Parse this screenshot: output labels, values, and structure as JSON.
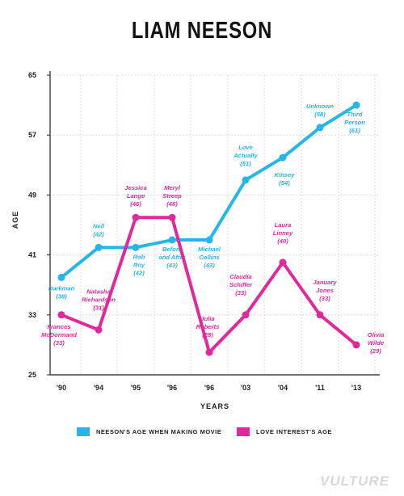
{
  "page": {
    "title": "LIAM NEESON",
    "brand": "VULTURE"
  },
  "colors": {
    "neeson": "#26b6e8",
    "love": "#e0299b",
    "grid": "#dcdcdc",
    "axis": "#222222"
  },
  "chart_data": {
    "type": "line",
    "title": "LIAM NEESON",
    "xlabel": "YEARS",
    "ylabel": "AGE",
    "categories": [
      "'90",
      "'94",
      "'95",
      "'96",
      "'96",
      "'03",
      "'04",
      "'11",
      "'13"
    ],
    "yticks": [
      25,
      33,
      41,
      49,
      57,
      65
    ],
    "ylim": [
      25,
      65
    ],
    "grid": true,
    "legend_position": "bottom",
    "series": [
      {
        "name": "NEESON'S AGE WHEN MAKING MOVIE",
        "color": "#26b6e8",
        "points": [
          {
            "x": 0,
            "y": 38,
            "label": [
              "Darkman",
              "(38)"
            ]
          },
          {
            "x": 1,
            "y": 42,
            "label": [
              "Nell",
              "(42)"
            ]
          },
          {
            "x": 2,
            "y": 42,
            "label": [
              "Rob",
              "Roy",
              "(42)"
            ]
          },
          {
            "x": 3,
            "y": 43,
            "label": [
              "Before",
              "and After",
              "(43)"
            ]
          },
          {
            "x": 4,
            "y": 43,
            "label": [
              "Michael",
              "Collins",
              "(43)"
            ]
          },
          {
            "x": 5,
            "y": 51,
            "label": [
              "Love",
              "Actually",
              "(51)"
            ]
          },
          {
            "x": 6,
            "y": 54,
            "label": [
              "Kinsey",
              "(54)"
            ]
          },
          {
            "x": 7,
            "y": 58,
            "label": [
              "Unknown",
              "(58)"
            ]
          },
          {
            "x": 8,
            "y": 61,
            "label": [
              "Third",
              "Person",
              "(61)"
            ]
          }
        ]
      },
      {
        "name": "LOVE INTEREST'S AGE",
        "color": "#e0299b",
        "points": [
          {
            "x": 0,
            "y": 33,
            "label": [
              "Frances",
              "McDormand",
              "(33)"
            ]
          },
          {
            "x": 1,
            "y": 31,
            "label": [
              "Natasha",
              "Richardson",
              "(31)"
            ]
          },
          {
            "x": 2,
            "y": 46,
            "label": [
              "Jessica",
              "Lange",
              "(46)"
            ]
          },
          {
            "x": 3,
            "y": 46,
            "label": [
              "Meryl",
              "Streep",
              "(46)"
            ]
          },
          {
            "x": 4,
            "y": 28,
            "label": [
              "Julia",
              "Roberts",
              "(28)"
            ]
          },
          {
            "x": 5,
            "y": 33,
            "label": [
              "Claudia",
              "Schiffer",
              "(33)"
            ]
          },
          {
            "x": 6,
            "y": 40,
            "label": [
              "Laura",
              "Linney",
              "(40)"
            ]
          },
          {
            "x": 7,
            "y": 33,
            "label": [
              "January",
              "Jones",
              "(33)"
            ]
          },
          {
            "x": 8,
            "y": 29,
            "label": [
              "Olivia",
              "Wilde",
              "(29)"
            ]
          }
        ]
      }
    ]
  },
  "legend": {
    "neeson_label": "NEESON'S AGE WHEN MAKING MOVIE",
    "love_label": "LOVE INTEREST'S AGE"
  }
}
